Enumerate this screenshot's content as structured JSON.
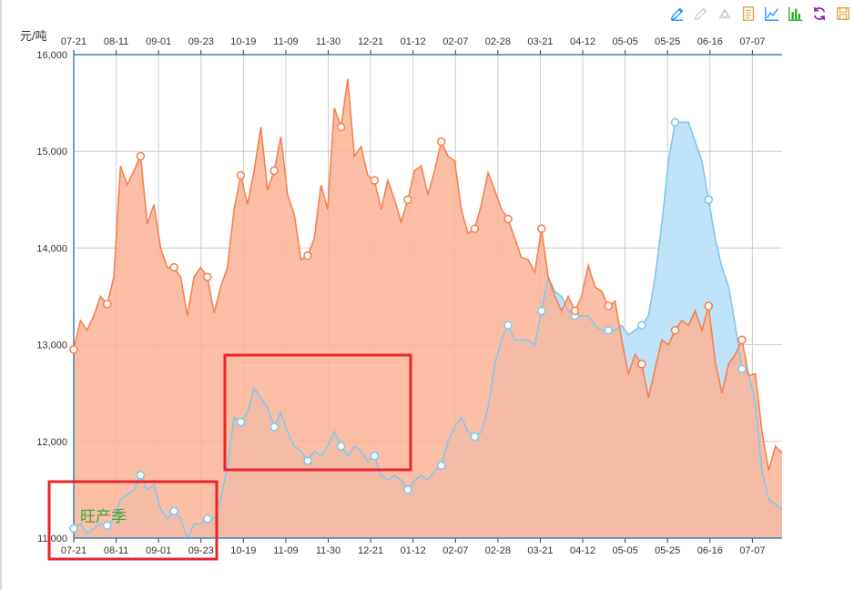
{
  "toolbar": {
    "icons": [
      {
        "name": "mark-icon",
        "color": "#1e90ff"
      },
      {
        "name": "mark-undo-icon",
        "color": "#cccccc"
      },
      {
        "name": "mark-clear-icon",
        "color": "#cccccc"
      },
      {
        "name": "data-view-icon",
        "color": "#e8a040"
      },
      {
        "name": "line-chart-icon",
        "color": "#1e90ff"
      },
      {
        "name": "bar-chart-icon",
        "color": "#22aa22"
      },
      {
        "name": "restore-icon",
        "color": "#8a1fa0"
      },
      {
        "name": "save-image-icon",
        "color": "#e8a040"
      }
    ]
  },
  "chart_data": {
    "type": "area",
    "ylabel": "元/吨",
    "ylim": [
      11000,
      16000
    ],
    "yticks": [
      "11,000",
      "12,000",
      "13,000",
      "14,000",
      "15,000",
      "16,000"
    ],
    "x_tick_labels": [
      "07-21",
      "08-11",
      "09-01",
      "09-23",
      "10-19",
      "11-09",
      "11-30",
      "12-21",
      "01-12",
      "02-07",
      "02-28",
      "03-21",
      "04-12",
      "05-05",
      "05-25",
      "06-16",
      "07-07"
    ],
    "grid": true,
    "annotation": "旺产季",
    "colors": {
      "orange_line": "#f58150",
      "orange_fill": "#fcb496",
      "blue_line": "#80c8ec",
      "blue_fill": "#bfe3f8",
      "highlight_box": "#e8262a"
    },
    "series": [
      {
        "color": "orange",
        "points": [
          [
            0,
            12950
          ],
          [
            1,
            13250
          ],
          [
            2,
            13150
          ],
          [
            3,
            13300
          ],
          [
            4,
            13500
          ],
          [
            5,
            13420
          ],
          [
            6,
            13700
          ],
          [
            7,
            14850
          ],
          [
            8,
            14650
          ],
          [
            9,
            14800
          ],
          [
            10,
            14950
          ],
          [
            11,
            14250
          ],
          [
            12,
            14450
          ],
          [
            13,
            14000
          ],
          [
            14,
            13800
          ],
          [
            15,
            13800
          ],
          [
            16,
            13700
          ],
          [
            17,
            13300
          ],
          [
            18,
            13700
          ],
          [
            19,
            13800
          ],
          [
            20,
            13700
          ],
          [
            21,
            13330
          ],
          [
            22,
            13600
          ],
          [
            23,
            13800
          ],
          [
            24,
            14400
          ],
          [
            25,
            14750
          ],
          [
            26,
            14450
          ],
          [
            27,
            14800
          ],
          [
            28,
            15250
          ],
          [
            29,
            14600
          ],
          [
            30,
            14800
          ],
          [
            31,
            15150
          ],
          [
            32,
            14550
          ],
          [
            33,
            14350
          ],
          [
            34,
            13880
          ],
          [
            35,
            13920
          ],
          [
            36,
            14100
          ],
          [
            37,
            14650
          ],
          [
            38,
            14400
          ],
          [
            39,
            15450
          ],
          [
            40,
            15250
          ],
          [
            41,
            15750
          ],
          [
            42,
            14950
          ],
          [
            43,
            15050
          ],
          [
            44,
            14750
          ],
          [
            45,
            14700
          ],
          [
            46,
            14400
          ],
          [
            47,
            14700
          ],
          [
            48,
            14500
          ],
          [
            49,
            14270
          ],
          [
            50,
            14500
          ],
          [
            51,
            14800
          ],
          [
            52,
            14850
          ],
          [
            53,
            14550
          ],
          [
            54,
            14800
          ],
          [
            55,
            15100
          ],
          [
            56,
            14950
          ],
          [
            57,
            14900
          ],
          [
            58,
            14400
          ],
          [
            59,
            14150
          ],
          [
            60,
            14200
          ],
          [
            61,
            14450
          ],
          [
            62,
            14780
          ],
          [
            63,
            14600
          ],
          [
            64,
            14400
          ],
          [
            65,
            14300
          ],
          [
            66,
            14100
          ],
          [
            67,
            13900
          ],
          [
            68,
            13880
          ],
          [
            69,
            13750
          ],
          [
            70,
            14200
          ],
          [
            71,
            13700
          ],
          [
            72,
            13500
          ],
          [
            73,
            13350
          ],
          [
            74,
            13500
          ],
          [
            75,
            13350
          ],
          [
            76,
            13500
          ],
          [
            77,
            13820
          ],
          [
            78,
            13600
          ],
          [
            79,
            13550
          ],
          [
            80,
            13400
          ],
          [
            81,
            13450
          ],
          [
            82,
            13050
          ],
          [
            83,
            12700
          ],
          [
            84,
            12900
          ],
          [
            85,
            12800
          ],
          [
            86,
            12450
          ],
          [
            87,
            12750
          ],
          [
            88,
            13050
          ],
          [
            89,
            13000
          ],
          [
            90,
            13150
          ],
          [
            91,
            13250
          ],
          [
            92,
            13200
          ],
          [
            93,
            13350
          ],
          [
            94,
            13150
          ],
          [
            95,
            13400
          ],
          [
            96,
            12820
          ],
          [
            97,
            12500
          ],
          [
            98,
            12800
          ],
          [
            99,
            12900
          ],
          [
            100,
            13050
          ],
          [
            101,
            12680
          ],
          [
            102,
            12700
          ],
          [
            103,
            12100
          ],
          [
            104,
            11700
          ],
          [
            105,
            11950
          ],
          [
            106,
            11880
          ]
        ]
      },
      {
        "color": "blue",
        "points": [
          [
            0,
            11100
          ],
          [
            1,
            11150
          ],
          [
            2,
            11050
          ],
          [
            3,
            11100
          ],
          [
            4,
            11150
          ],
          [
            5,
            11130
          ],
          [
            6,
            11200
          ],
          [
            7,
            11400
          ],
          [
            8,
            11450
          ],
          [
            9,
            11500
          ],
          [
            10,
            11650
          ],
          [
            11,
            11500
          ],
          [
            12,
            11550
          ],
          [
            13,
            11300
          ],
          [
            14,
            11200
          ],
          [
            15,
            11280
          ],
          [
            16,
            11200
          ],
          [
            17,
            11000
          ],
          [
            18,
            11150
          ],
          [
            19,
            11150
          ],
          [
            20,
            11200
          ],
          [
            21,
            11200
          ],
          [
            22,
            11400
          ],
          [
            23,
            11750
          ],
          [
            24,
            12250
          ],
          [
            25,
            12200
          ],
          [
            26,
            12300
          ],
          [
            27,
            12550
          ],
          [
            28,
            12450
          ],
          [
            29,
            12350
          ],
          [
            30,
            12150
          ],
          [
            31,
            12300
          ],
          [
            32,
            12100
          ],
          [
            33,
            11950
          ],
          [
            34,
            11900
          ],
          [
            35,
            11800
          ],
          [
            36,
            11900
          ],
          [
            37,
            11850
          ],
          [
            38,
            11950
          ],
          [
            39,
            12100
          ],
          [
            40,
            11950
          ],
          [
            41,
            11850
          ],
          [
            42,
            11950
          ],
          [
            43,
            11900
          ],
          [
            44,
            11800
          ],
          [
            45,
            11850
          ],
          [
            46,
            11650
          ],
          [
            47,
            11600
          ],
          [
            48,
            11650
          ],
          [
            49,
            11600
          ],
          [
            50,
            11500
          ],
          [
            51,
            11600
          ],
          [
            52,
            11650
          ],
          [
            53,
            11600
          ],
          [
            54,
            11700
          ],
          [
            55,
            11750
          ],
          [
            56,
            12000
          ],
          [
            57,
            12150
          ],
          [
            58,
            12250
          ],
          [
            59,
            12100
          ],
          [
            60,
            12050
          ],
          [
            61,
            12100
          ],
          [
            62,
            12350
          ],
          [
            63,
            12800
          ],
          [
            64,
            13050
          ],
          [
            65,
            13200
          ],
          [
            66,
            13050
          ],
          [
            67,
            13050
          ],
          [
            68,
            13050
          ],
          [
            69,
            13000
          ],
          [
            70,
            13350
          ],
          [
            71,
            13700
          ],
          [
            72,
            13550
          ],
          [
            73,
            13500
          ],
          [
            74,
            13350
          ],
          [
            75,
            13300
          ],
          [
            76,
            13300
          ],
          [
            77,
            13300
          ],
          [
            78,
            13200
          ],
          [
            79,
            13150
          ],
          [
            80,
            13150
          ],
          [
            81,
            13150
          ],
          [
            82,
            13200
          ],
          [
            83,
            13100
          ],
          [
            84,
            13150
          ],
          [
            85,
            13200
          ],
          [
            86,
            13300
          ],
          [
            87,
            13700
          ],
          [
            88,
            14250
          ],
          [
            89,
            14900
          ],
          [
            90,
            15300
          ],
          [
            91,
            15300
          ],
          [
            92,
            15300
          ],
          [
            93,
            15100
          ],
          [
            94,
            14900
          ],
          [
            95,
            14500
          ],
          [
            96,
            14100
          ],
          [
            97,
            13800
          ],
          [
            98,
            13600
          ],
          [
            99,
            13200
          ],
          [
            100,
            12750
          ],
          [
            101,
            12700
          ],
          [
            102,
            12400
          ],
          [
            103,
            11700
          ],
          [
            104,
            11400
          ],
          [
            105,
            11350
          ],
          [
            106,
            11300
          ]
        ]
      }
    ]
  }
}
